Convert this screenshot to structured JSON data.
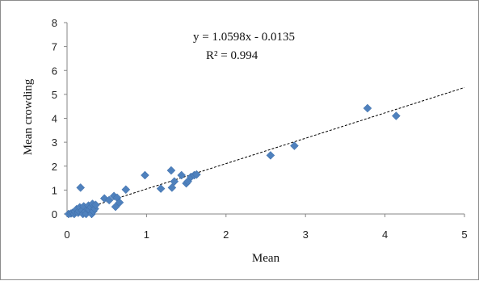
{
  "chart_data": {
    "type": "scatter",
    "xlabel": "Mean",
    "ylabel": "Mean crowding",
    "xlim": [
      0,
      5
    ],
    "ylim": [
      0,
      8
    ],
    "xticks": [
      0,
      1,
      2,
      3,
      4,
      5
    ],
    "yticks": [
      0,
      1,
      2,
      3,
      4,
      5,
      6,
      7,
      8
    ],
    "grid": false,
    "marker_color": "#4F81BD",
    "trendline": {
      "type": "linear",
      "slope": 1.0598,
      "intercept": -0.0135,
      "style": "dashed",
      "color": "#000000",
      "equation_label": "y = 1.0598x - 0.0135",
      "r2_label": "R² = 0.994"
    },
    "points": [
      {
        "x": 0.02,
        "y": 0.0
      },
      {
        "x": 0.05,
        "y": 0.02
      },
      {
        "x": 0.07,
        "y": 0.05
      },
      {
        "x": 0.09,
        "y": 0.0
      },
      {
        "x": 0.1,
        "y": 0.1
      },
      {
        "x": 0.12,
        "y": 0.2
      },
      {
        "x": 0.14,
        "y": 0.05
      },
      {
        "x": 0.15,
        "y": 0.12
      },
      {
        "x": 0.16,
        "y": 0.28
      },
      {
        "x": 0.17,
        "y": 1.1
      },
      {
        "x": 0.19,
        "y": 0.15
      },
      {
        "x": 0.2,
        "y": 0.0
      },
      {
        "x": 0.21,
        "y": 0.32
      },
      {
        "x": 0.23,
        "y": 0.1
      },
      {
        "x": 0.24,
        "y": 0.0
      },
      {
        "x": 0.26,
        "y": 0.2
      },
      {
        "x": 0.27,
        "y": 0.35
      },
      {
        "x": 0.28,
        "y": 0.18
      },
      {
        "x": 0.3,
        "y": 0.28
      },
      {
        "x": 0.31,
        "y": 0.0
      },
      {
        "x": 0.32,
        "y": 0.42
      },
      {
        "x": 0.33,
        "y": 0.12
      },
      {
        "x": 0.35,
        "y": 0.22
      },
      {
        "x": 0.36,
        "y": 0.38
      },
      {
        "x": 0.47,
        "y": 0.65
      },
      {
        "x": 0.53,
        "y": 0.58
      },
      {
        "x": 0.59,
        "y": 0.75
      },
      {
        "x": 0.61,
        "y": 0.3
      },
      {
        "x": 0.63,
        "y": 0.68
      },
      {
        "x": 0.66,
        "y": 0.48
      },
      {
        "x": 0.74,
        "y": 1.02
      },
      {
        "x": 0.98,
        "y": 1.62
      },
      {
        "x": 1.18,
        "y": 1.06
      },
      {
        "x": 1.31,
        "y": 1.82
      },
      {
        "x": 1.32,
        "y": 1.1
      },
      {
        "x": 1.35,
        "y": 1.36
      },
      {
        "x": 1.44,
        "y": 1.62
      },
      {
        "x": 1.5,
        "y": 1.28
      },
      {
        "x": 1.52,
        "y": 1.36
      },
      {
        "x": 1.56,
        "y": 1.55
      },
      {
        "x": 1.6,
        "y": 1.62
      },
      {
        "x": 1.63,
        "y": 1.65
      },
      {
        "x": 2.56,
        "y": 2.45
      },
      {
        "x": 2.86,
        "y": 2.85
      },
      {
        "x": 3.78,
        "y": 4.42
      },
      {
        "x": 4.14,
        "y": 4.1
      }
    ]
  }
}
